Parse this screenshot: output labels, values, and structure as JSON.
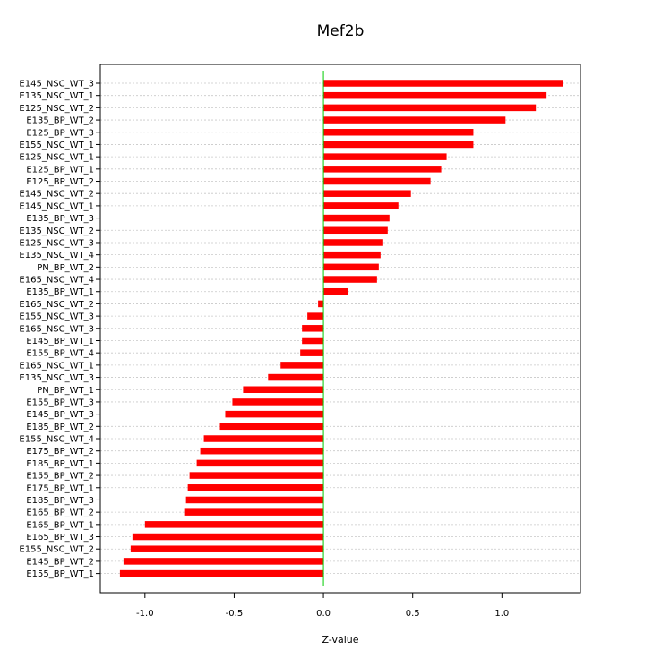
{
  "chart_data": {
    "type": "bar",
    "orientation": "horizontal",
    "title": "Mef2b",
    "xlabel": "Z-value",
    "ylabel": "",
    "xlim": [
      -1.25,
      1.44
    ],
    "xticks": [
      -1.0,
      -0.5,
      0.0,
      0.5,
      1.0
    ],
    "xtick_labels": [
      "-1.0",
      "-0.5",
      "0.0",
      "0.5",
      "1.0"
    ],
    "grid": "horizontal dotted",
    "colors": {
      "bar": "#ff0000",
      "zero_line": "#00cc00",
      "grid": "#c8c8c8"
    },
    "categories": [
      "E145_NSC_WT_3",
      "E135_NSC_WT_1",
      "E125_NSC_WT_2",
      "E135_BP_WT_2",
      "E125_BP_WT_3",
      "E155_NSC_WT_1",
      "E125_NSC_WT_1",
      "E125_BP_WT_1",
      "E125_BP_WT_2",
      "E145_NSC_WT_2",
      "E145_NSC_WT_1",
      "E135_BP_WT_3",
      "E135_NSC_WT_2",
      "E125_NSC_WT_3",
      "E135_NSC_WT_4",
      "PN_BP_WT_2",
      "E165_NSC_WT_4",
      "E135_BP_WT_1",
      "E165_NSC_WT_2",
      "E155_NSC_WT_3",
      "E165_NSC_WT_3",
      "E145_BP_WT_1",
      "E155_BP_WT_4",
      "E165_NSC_WT_1",
      "E135_NSC_WT_3",
      "PN_BP_WT_1",
      "E155_BP_WT_3",
      "E145_BP_WT_3",
      "E185_BP_WT_2",
      "E155_NSC_WT_4",
      "E175_BP_WT_2",
      "E185_BP_WT_1",
      "E155_BP_WT_2",
      "E175_BP_WT_1",
      "E185_BP_WT_3",
      "E165_BP_WT_2",
      "E165_BP_WT_1",
      "E165_BP_WT_3",
      "E155_NSC_WT_2",
      "E145_BP_WT_2",
      "E155_BP_WT_1"
    ],
    "values": [
      1.34,
      1.25,
      1.19,
      1.02,
      0.84,
      0.84,
      0.69,
      0.66,
      0.6,
      0.49,
      0.42,
      0.37,
      0.36,
      0.33,
      0.32,
      0.31,
      0.3,
      0.14,
      -0.03,
      -0.09,
      -0.12,
      -0.12,
      -0.13,
      -0.24,
      -0.31,
      -0.45,
      -0.51,
      -0.55,
      -0.58,
      -0.67,
      -0.69,
      -0.71,
      -0.75,
      -0.76,
      -0.77,
      -0.78,
      -1.0,
      -1.07,
      -1.08,
      -1.12,
      -1.14
    ]
  }
}
